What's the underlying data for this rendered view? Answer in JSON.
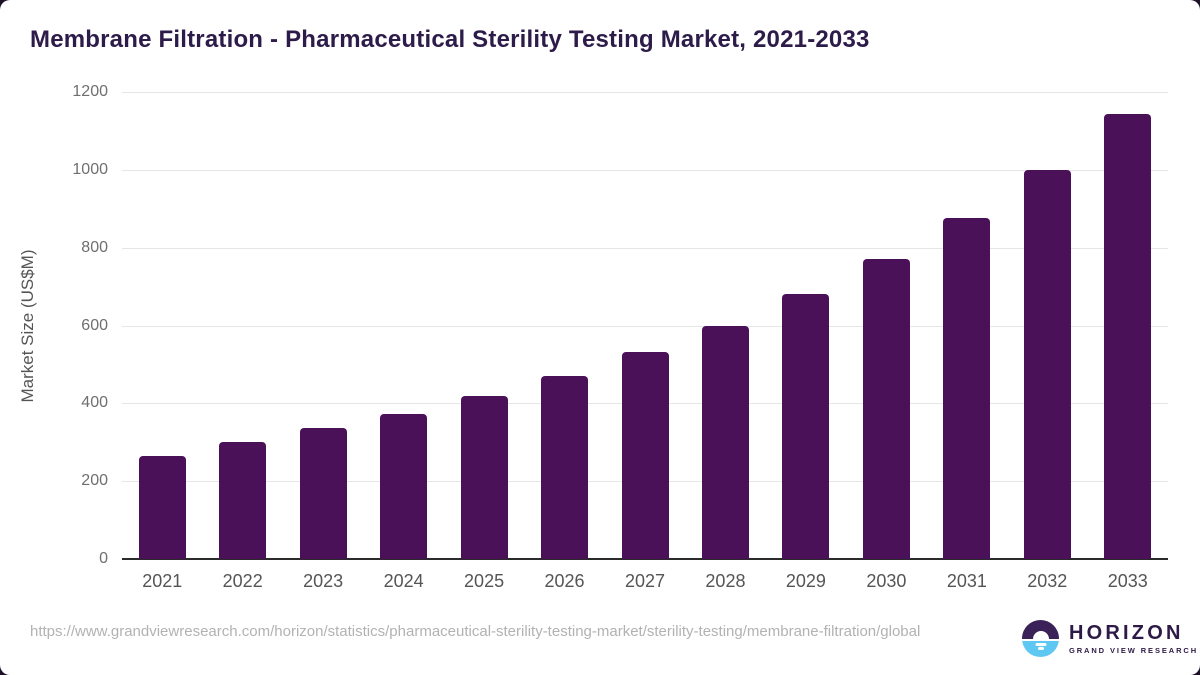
{
  "title": "Membrane Filtration - Pharmaceutical Sterility Testing Market, 2021-2033",
  "chart_data": {
    "type": "bar",
    "categories": [
      "2021",
      "2022",
      "2023",
      "2024",
      "2025",
      "2026",
      "2027",
      "2028",
      "2029",
      "2030",
      "2031",
      "2032",
      "2033"
    ],
    "values": [
      265,
      300,
      337,
      373,
      420,
      470,
      533,
      600,
      680,
      770,
      875,
      1000,
      1143
    ],
    "title": "Membrane Filtration - Pharmaceutical Sterility Testing Market, 2021-2033",
    "xlabel": "",
    "ylabel": "Market Size (US$M)",
    "ylim": [
      0,
      1200
    ],
    "yticks": [
      0,
      200,
      400,
      600,
      800,
      1000,
      1200
    ],
    "grid": "horizontal",
    "legend": "none",
    "bar_color": "#4a1158"
  },
  "footer": {
    "source_url": "https://www.grandviewresearch.com/horizon/statistics/pharmaceutical-sterility-testing-market/sterility-testing/membrane-filtration/global",
    "logo": {
      "name": "HORIZON",
      "subtitle": "GRAND VIEW RESEARCH",
      "purple": "#3a2157",
      "blue": "#5ec8f2"
    }
  },
  "colors": {
    "title_text": "#2d1b49",
    "bar": "#4a1158",
    "axis_text": "#555555",
    "tick_text": "#6f6f6f",
    "url_text": "#b2b2b2"
  }
}
